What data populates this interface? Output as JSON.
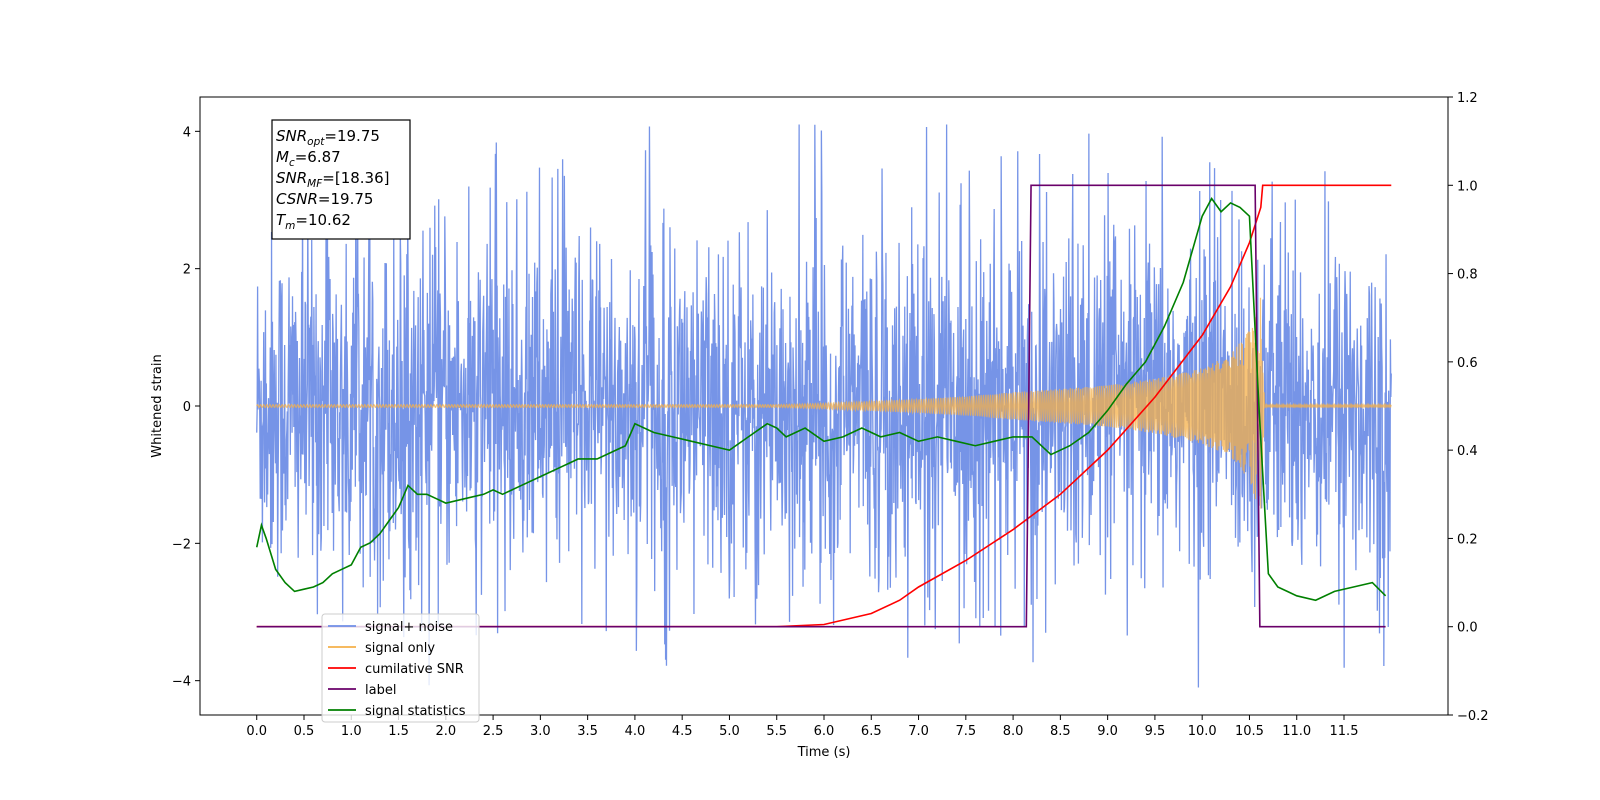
{
  "chart_data": {
    "type": "line",
    "xlabel": "Time (s)",
    "ylabel": "Whitened strain",
    "xlim": [
      -0.6,
      12.6
    ],
    "ylim_left": [
      -4.5,
      4.5
    ],
    "ylim_right": [
      -0.2,
      1.2
    ],
    "x_ticks": [
      0.0,
      0.5,
      1.0,
      1.5,
      2.0,
      2.5,
      3.0,
      3.5,
      4.0,
      4.5,
      5.0,
      5.5,
      6.0,
      6.5,
      7.0,
      7.5,
      8.0,
      8.5,
      9.0,
      9.5,
      10.0,
      10.5,
      11.0,
      11.5
    ],
    "x_tick_labels": [
      "0.0",
      "0.5",
      "1.0",
      "1.5",
      "2.0",
      "2.5",
      "3.0",
      "3.5",
      "4.0",
      "4.5",
      "5.0",
      "5.5",
      "6.0",
      "6.5",
      "7.0",
      "7.5",
      "8.0",
      "8.5",
      "9.0",
      "9.5",
      "10.0",
      "10.5",
      "11.0",
      "11.5"
    ],
    "y_left_ticks": [
      -4,
      -2,
      0,
      2,
      4
    ],
    "y_left_tick_labels": [
      "−4",
      "−2",
      "0",
      "2",
      "4"
    ],
    "y_right_ticks": [
      -0.2,
      0.0,
      0.2,
      0.4,
      0.6,
      0.8,
      1.0,
      1.2
    ],
    "y_right_tick_labels": [
      "−0.2",
      "0.0",
      "0.2",
      "0.4",
      "0.6",
      "0.8",
      "1.0",
      "1.2"
    ],
    "grid": false,
    "legend_position": "lower-left",
    "annotation": [
      {
        "base": "SNR",
        "sub": "opt",
        "value": "=19.75"
      },
      {
        "base": "M",
        "sub": "c",
        "value": "=6.87"
      },
      {
        "base": "SNR",
        "sub": "MF",
        "value": "=[18.36]"
      },
      {
        "base": "CSNR",
        "sub": "",
        "value": "=19.75"
      },
      {
        "base": "T",
        "sub": "m",
        "value": "=10.62"
      }
    ],
    "series": [
      {
        "name": "signal+ noise",
        "axis": "left",
        "color": "#6f8ee6",
        "description_stats": {
          "x_range": [
            0.0,
            12.0
          ],
          "typical_amplitude": 2.5,
          "max": 4.1,
          "min": -4.1
        }
      },
      {
        "name": "signal only",
        "axis": "left",
        "color": "#f5b04a",
        "envelope": {
          "x": [
            0.0,
            5.5,
            6.0,
            6.5,
            7.0,
            7.5,
            8.0,
            8.5,
            9.0,
            9.5,
            10.0,
            10.3,
            10.5,
            10.62,
            10.66,
            12.0
          ],
          "amplitude": [
            0.02,
            0.02,
            0.04,
            0.07,
            0.1,
            0.14,
            0.2,
            0.25,
            0.3,
            0.4,
            0.55,
            0.75,
            1.1,
            1.6,
            0.02,
            0.02
          ]
        }
      },
      {
        "name": "cumilative SNR",
        "axis": "right",
        "color": "#ff0000",
        "x": [
          0.0,
          5.5,
          6.0,
          6.5,
          6.8,
          7.0,
          7.5,
          8.0,
          8.5,
          9.0,
          9.5,
          10.0,
          10.3,
          10.5,
          10.62,
          10.64,
          12.0
        ],
        "y": [
          0.0,
          0.0,
          0.005,
          0.03,
          0.06,
          0.09,
          0.15,
          0.22,
          0.3,
          0.4,
          0.52,
          0.66,
          0.77,
          0.87,
          0.95,
          1.0,
          1.0
        ]
      },
      {
        "name": "label",
        "axis": "right",
        "color": "#6a006a",
        "x": [
          0.0,
          8.14,
          8.19,
          10.56,
          10.61,
          11.94
        ],
        "y": [
          0.0,
          0.0,
          1.0,
          1.0,
          0.0,
          0.0
        ]
      },
      {
        "name": "signal statistics",
        "axis": "right",
        "color": "#008000",
        "x": [
          0.0,
          0.05,
          0.1,
          0.2,
          0.3,
          0.4,
          0.5,
          0.6,
          0.7,
          0.8,
          0.9,
          1.0,
          1.1,
          1.2,
          1.3,
          1.4,
          1.5,
          1.6,
          1.7,
          1.8,
          1.9,
          2.0,
          2.2,
          2.4,
          2.5,
          2.6,
          2.8,
          3.0,
          3.2,
          3.4,
          3.6,
          3.8,
          3.9,
          4.0,
          4.2,
          4.4,
          4.6,
          4.8,
          5.0,
          5.2,
          5.4,
          5.5,
          5.6,
          5.8,
          6.0,
          6.2,
          6.4,
          6.6,
          6.8,
          7.0,
          7.2,
          7.4,
          7.6,
          7.8,
          8.0,
          8.2,
          8.4,
          8.6,
          8.8,
          9.0,
          9.2,
          9.4,
          9.5,
          9.6,
          9.8,
          10.0,
          10.1,
          10.2,
          10.3,
          10.4,
          10.5,
          10.6,
          10.7,
          10.8,
          10.9,
          11.0,
          11.2,
          11.4,
          11.6,
          11.8,
          11.94
        ],
        "y": [
          0.18,
          0.23,
          0.2,
          0.13,
          0.1,
          0.08,
          0.085,
          0.09,
          0.1,
          0.12,
          0.13,
          0.14,
          0.18,
          0.19,
          0.21,
          0.24,
          0.27,
          0.32,
          0.3,
          0.3,
          0.29,
          0.28,
          0.29,
          0.3,
          0.31,
          0.3,
          0.32,
          0.34,
          0.36,
          0.38,
          0.38,
          0.4,
          0.41,
          0.46,
          0.44,
          0.43,
          0.42,
          0.41,
          0.4,
          0.43,
          0.46,
          0.45,
          0.43,
          0.45,
          0.42,
          0.43,
          0.45,
          0.43,
          0.44,
          0.42,
          0.43,
          0.42,
          0.41,
          0.42,
          0.43,
          0.43,
          0.39,
          0.41,
          0.44,
          0.49,
          0.55,
          0.6,
          0.64,
          0.68,
          0.78,
          0.93,
          0.97,
          0.94,
          0.96,
          0.95,
          0.93,
          0.5,
          0.12,
          0.09,
          0.08,
          0.07,
          0.06,
          0.08,
          0.09,
          0.1,
          0.07
        ]
      }
    ]
  }
}
